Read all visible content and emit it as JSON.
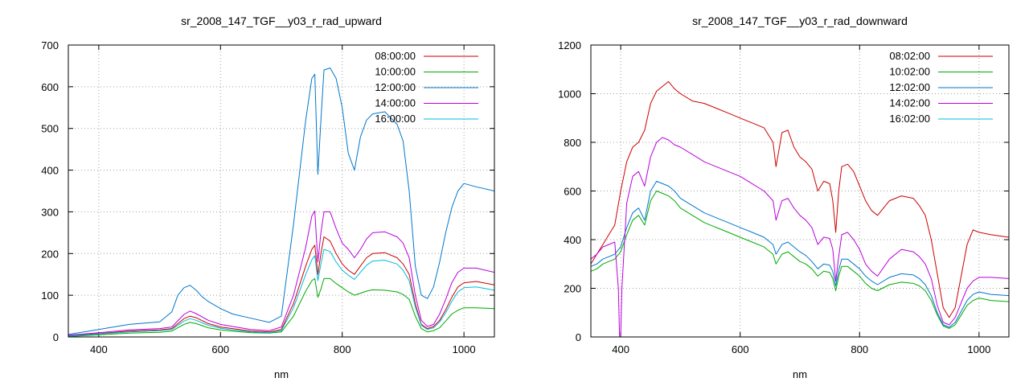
{
  "chart_data": [
    {
      "type": "line",
      "title": "sr_2008_147_TGF__y03_r_rad_upward",
      "xlabel": "nm",
      "ylabel": "",
      "xlim": [
        350,
        1050
      ],
      "ylim": [
        0,
        700
      ],
      "xticks": [
        400,
        600,
        800,
        1000
      ],
      "yticks": [
        0,
        100,
        200,
        300,
        400,
        500,
        600,
        700
      ],
      "grid": true,
      "legend": "top-right",
      "series": [
        {
          "name": "08:00:00",
          "color": "#cc0000",
          "x": [
            350,
            400,
            450,
            500,
            520,
            540,
            550,
            560,
            580,
            600,
            620,
            650,
            680,
            700,
            720,
            740,
            750,
            755,
            760,
            765,
            770,
            780,
            790,
            800,
            810,
            820,
            830,
            840,
            850,
            870,
            890,
            900,
            910,
            920,
            930,
            940,
            950,
            960,
            970,
            980,
            990,
            1000,
            1020,
            1050
          ],
          "y": [
            3,
            8,
            14,
            17,
            20,
            44,
            50,
            46,
            32,
            24,
            20,
            14,
            12,
            18,
            80,
            170,
            210,
            220,
            150,
            200,
            240,
            230,
            200,
            175,
            160,
            150,
            170,
            190,
            200,
            202,
            190,
            175,
            150,
            80,
            30,
            20,
            25,
            40,
            65,
            95,
            120,
            130,
            133,
            125
          ]
        },
        {
          "name": "10:00:00",
          "color": "#00aa00",
          "x": [
            350,
            400,
            450,
            500,
            520,
            540,
            550,
            560,
            580,
            600,
            620,
            650,
            680,
            700,
            720,
            740,
            750,
            755,
            760,
            765,
            770,
            780,
            790,
            800,
            810,
            820,
            830,
            840,
            850,
            870,
            890,
            900,
            910,
            920,
            930,
            940,
            950,
            960,
            970,
            980,
            990,
            1000,
            1020,
            1050
          ],
          "y": [
            1,
            5,
            9,
            11,
            14,
            30,
            35,
            32,
            22,
            17,
            14,
            10,
            9,
            12,
            50,
            110,
            135,
            140,
            95,
            115,
            140,
            140,
            128,
            118,
            108,
            100,
            105,
            110,
            113,
            112,
            108,
            102,
            90,
            50,
            20,
            12,
            15,
            22,
            38,
            55,
            64,
            70,
            70,
            68
          ]
        },
        {
          "name": "12:00:00",
          "color": "#0077cc",
          "x": [
            350,
            400,
            450,
            500,
            520,
            530,
            540,
            550,
            560,
            570,
            580,
            600,
            620,
            650,
            680,
            700,
            720,
            740,
            750,
            755,
            760,
            765,
            770,
            780,
            790,
            800,
            810,
            820,
            830,
            840,
            850,
            870,
            890,
            900,
            910,
            920,
            930,
            940,
            950,
            960,
            970,
            980,
            990,
            1000,
            1020,
            1050
          ],
          "y": [
            6,
            18,
            30,
            36,
            60,
            100,
            118,
            124,
            112,
            96,
            85,
            68,
            55,
            45,
            35,
            50,
            270,
            520,
            620,
            630,
            390,
            520,
            640,
            645,
            620,
            550,
            440,
            400,
            480,
            520,
            535,
            540,
            510,
            470,
            350,
            170,
            100,
            92,
            120,
            180,
            250,
            310,
            350,
            368,
            360,
            350
          ]
        },
        {
          "name": "14:00:00",
          "color": "#bb00dd",
          "x": [
            350,
            400,
            450,
            500,
            520,
            540,
            550,
            560,
            580,
            600,
            620,
            650,
            680,
            700,
            720,
            740,
            750,
            755,
            760,
            765,
            770,
            780,
            790,
            800,
            810,
            820,
            830,
            840,
            850,
            870,
            890,
            900,
            910,
            920,
            930,
            940,
            950,
            960,
            970,
            980,
            990,
            1000,
            1020,
            1050
          ],
          "y": [
            4,
            10,
            17,
            20,
            24,
            54,
            62,
            56,
            40,
            30,
            25,
            18,
            15,
            24,
            100,
            215,
            290,
            302,
            180,
            250,
            300,
            300,
            260,
            225,
            210,
            190,
            210,
            235,
            250,
            252,
            240,
            225,
            190,
            100,
            40,
            25,
            30,
            55,
            90,
            130,
            155,
            165,
            165,
            155
          ]
        },
        {
          "name": "16:00:00",
          "color": "#00bbdd",
          "x": [
            350,
            400,
            450,
            500,
            520,
            540,
            550,
            560,
            580,
            600,
            620,
            650,
            680,
            700,
            720,
            740,
            750,
            755,
            760,
            765,
            770,
            780,
            790,
            800,
            810,
            820,
            830,
            840,
            850,
            870,
            890,
            900,
            910,
            920,
            930,
            940,
            950,
            960,
            970,
            980,
            990,
            1000,
            1020,
            1050
          ],
          "y": [
            2,
            7,
            12,
            15,
            18,
            38,
            44,
            40,
            28,
            21,
            17,
            12,
            10,
            15,
            70,
            150,
            185,
            195,
            135,
            175,
            210,
            205,
            180,
            160,
            148,
            138,
            155,
            172,
            182,
            184,
            175,
            160,
            135,
            72,
            28,
            18,
            22,
            36,
            58,
            85,
            108,
            118,
            120,
            112
          ]
        }
      ]
    },
    {
      "type": "line",
      "title": "sr_2008_147_TGF__y03_r_rad_downward",
      "xlabel": "nm",
      "ylabel": "",
      "xlim": [
        350,
        1050
      ],
      "ylim": [
        0,
        1200
      ],
      "xticks": [
        400,
        600,
        800,
        1000
      ],
      "yticks": [
        0,
        200,
        400,
        600,
        800,
        1000,
        1200
      ],
      "grid": true,
      "legend": "top-right",
      "series": [
        {
          "name": "08:02:00",
          "color": "#cc0000",
          "x": [
            350,
            360,
            370,
            380,
            390,
            400,
            410,
            420,
            430,
            440,
            450,
            460,
            470,
            480,
            490,
            500,
            520,
            540,
            560,
            580,
            600,
            620,
            640,
            655,
            660,
            670,
            680,
            690,
            700,
            710,
            720,
            730,
            740,
            750,
            755,
            760,
            765,
            770,
            780,
            790,
            800,
            810,
            820,
            830,
            850,
            870,
            890,
            900,
            910,
            920,
            930,
            940,
            950,
            960,
            970,
            980,
            990,
            1000,
            1020,
            1050
          ],
          "y": [
            300,
            340,
            380,
            420,
            460,
            600,
            720,
            780,
            800,
            850,
            960,
            1010,
            1030,
            1050,
            1020,
            1000,
            970,
            960,
            940,
            920,
            900,
            880,
            860,
            800,
            700,
            840,
            850,
            780,
            740,
            720,
            690,
            600,
            640,
            630,
            560,
            430,
            600,
            700,
            710,
            680,
            620,
            560,
            520,
            500,
            560,
            580,
            570,
            540,
            500,
            400,
            260,
            120,
            80,
            120,
            250,
            380,
            440,
            430,
            420,
            410
          ]
        },
        {
          "name": "10:02:00",
          "color": "#00aa00",
          "x": [
            350,
            360,
            370,
            380,
            390,
            400,
            410,
            420,
            430,
            440,
            450,
            460,
            470,
            480,
            490,
            500,
            520,
            540,
            560,
            580,
            600,
            620,
            640,
            655,
            660,
            670,
            680,
            690,
            700,
            710,
            720,
            730,
            740,
            750,
            755,
            760,
            765,
            770,
            780,
            790,
            800,
            810,
            820,
            830,
            850,
            870,
            890,
            900,
            910,
            920,
            930,
            940,
            950,
            960,
            970,
            980,
            990,
            1000,
            1020,
            1050
          ],
          "y": [
            270,
            280,
            300,
            310,
            320,
            350,
            420,
            480,
            500,
            460,
            560,
            600,
            590,
            580,
            560,
            530,
            500,
            470,
            450,
            430,
            410,
            390,
            370,
            340,
            300,
            340,
            350,
            330,
            310,
            300,
            280,
            250,
            270,
            265,
            240,
            190,
            250,
            290,
            290,
            270,
            250,
            220,
            200,
            190,
            215,
            225,
            220,
            210,
            190,
            150,
            90,
            45,
            35,
            50,
            90,
            130,
            150,
            160,
            150,
            145
          ]
        },
        {
          "name": "12:02:00",
          "color": "#0077cc",
          "x": [
            350,
            360,
            370,
            380,
            390,
            400,
            410,
            420,
            430,
            440,
            450,
            460,
            470,
            480,
            490,
            500,
            520,
            540,
            560,
            580,
            600,
            620,
            640,
            655,
            660,
            670,
            680,
            690,
            700,
            710,
            720,
            730,
            740,
            750,
            755,
            760,
            765,
            770,
            780,
            790,
            800,
            810,
            820,
            830,
            850,
            870,
            890,
            900,
            910,
            920,
            930,
            940,
            950,
            960,
            970,
            980,
            990,
            1000,
            1020,
            1050
          ],
          "y": [
            290,
            300,
            320,
            330,
            340,
            370,
            450,
            510,
            530,
            480,
            600,
            640,
            630,
            620,
            600,
            570,
            540,
            510,
            490,
            470,
            450,
            430,
            410,
            380,
            340,
            380,
            390,
            370,
            350,
            335,
            310,
            280,
            300,
            295,
            270,
            210,
            275,
            320,
            320,
            300,
            280,
            250,
            230,
            215,
            245,
            260,
            255,
            240,
            215,
            170,
            100,
            50,
            40,
            60,
            105,
            150,
            175,
            185,
            175,
            170
          ]
        },
        {
          "name": "14:02:00",
          "color": "#bb00dd",
          "x": [
            350,
            360,
            370,
            380,
            390,
            396,
            398,
            400,
            402,
            410,
            420,
            430,
            440,
            450,
            460,
            470,
            480,
            490,
            500,
            520,
            540,
            560,
            580,
            600,
            620,
            640,
            655,
            660,
            670,
            680,
            690,
            700,
            710,
            720,
            730,
            740,
            750,
            755,
            760,
            765,
            770,
            780,
            790,
            800,
            810,
            820,
            830,
            850,
            870,
            890,
            900,
            910,
            920,
            930,
            940,
            950,
            960,
            970,
            980,
            990,
            1000,
            1020,
            1050
          ],
          "y": [
            320,
            340,
            370,
            380,
            390,
            200,
            0,
            0,
            200,
            550,
            660,
            680,
            620,
            740,
            800,
            820,
            810,
            790,
            780,
            750,
            720,
            700,
            680,
            660,
            630,
            600,
            560,
            480,
            560,
            570,
            530,
            500,
            480,
            450,
            380,
            410,
            405,
            360,
            230,
            330,
            420,
            430,
            400,
            360,
            300,
            270,
            250,
            320,
            360,
            350,
            330,
            300,
            240,
            130,
            60,
            50,
            80,
            140,
            200,
            230,
            245,
            245,
            240
          ]
        },
        {
          "name": "16:02:00",
          "color": "#00bbdd",
          "x": [
            350,
            400,
            450,
            500,
            550,
            600,
            650,
            700,
            750,
            800,
            850,
            900,
            950,
            1000,
            1050
          ],
          "y": [
            0,
            0,
            0,
            0,
            0,
            0,
            0,
            0,
            0,
            0,
            0,
            0,
            0,
            0,
            0
          ]
        }
      ]
    }
  ]
}
